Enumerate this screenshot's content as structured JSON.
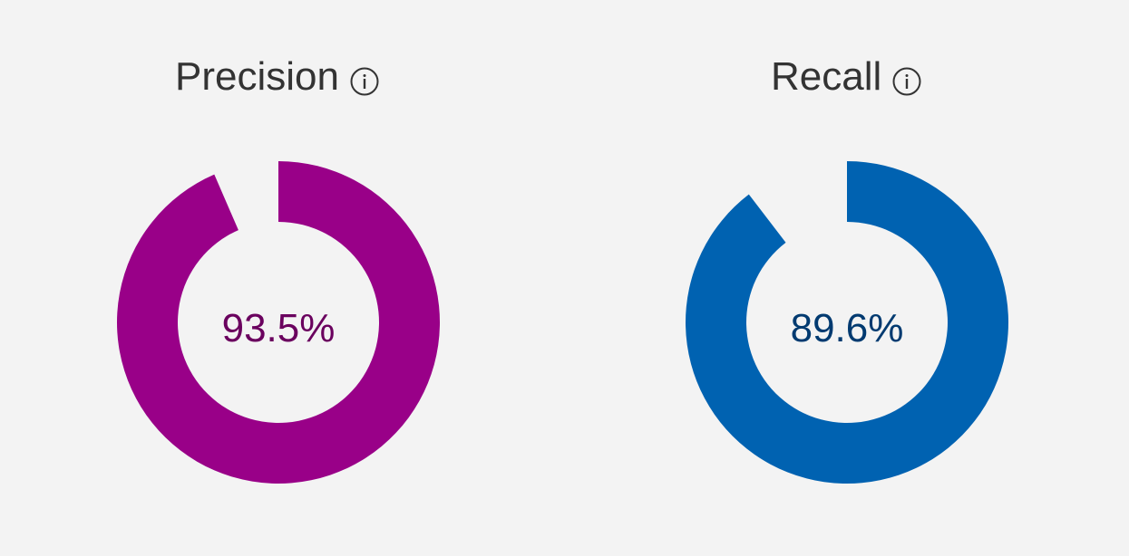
{
  "metrics": [
    {
      "title": "Precision",
      "value": 93.5,
      "value_label": "93.5%",
      "fill_color": "#990088",
      "text_color": "#6a005e",
      "info_icon": "info-icon"
    },
    {
      "title": "Recall",
      "value": 89.6,
      "value_label": "89.6%",
      "fill_color": "#0062b1",
      "text_color": "#003a70",
      "info_icon": "info-icon"
    }
  ]
}
